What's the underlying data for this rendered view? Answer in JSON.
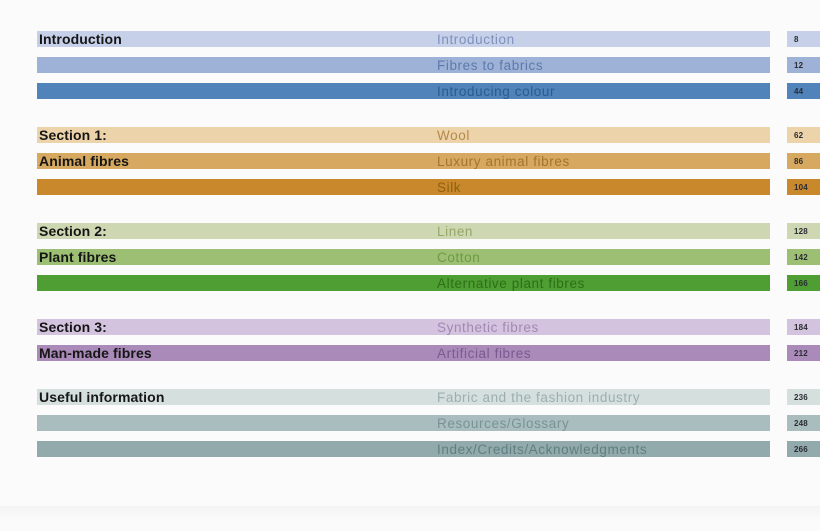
{
  "toc": {
    "groups": [
      {
        "rows": [
          {
            "section_label": "Introduction",
            "chapter": "Introduction",
            "page": "8",
            "bar_color": "#c6d0e8",
            "text_color": "#7e90bd"
          },
          {
            "section_label": "",
            "chapter": "Fibres to fabrics",
            "page": "12",
            "bar_color": "#9db2d6",
            "text_color": "#5d7aac"
          },
          {
            "section_label": "",
            "chapter": "Introducing colour",
            "page": "44",
            "bar_color": "#4f83b9",
            "text_color": "#2a5c8d"
          }
        ]
      },
      {
        "rows": [
          {
            "section_label": "Section 1:",
            "chapter": "Wool",
            "page": "62",
            "bar_color": "#ecd3aa",
            "text_color": "#b5894a"
          },
          {
            "section_label": "Animal fibres",
            "chapter": "Luxury animal fibres",
            "page": "86",
            "bar_color": "#d7a85f",
            "text_color": "#a1752e"
          },
          {
            "section_label": "",
            "chapter": "Silk",
            "page": "104",
            "bar_color": "#c8882b",
            "text_color": "#8e6110"
          }
        ]
      },
      {
        "rows": [
          {
            "section_label": "Section 2:",
            "chapter": "Linen",
            "page": "128",
            "bar_color": "#cdd7b2",
            "text_color": "#95a768"
          },
          {
            "section_label": "Plant fibres",
            "chapter": "Cotton",
            "page": "142",
            "bar_color": "#9cbf74",
            "text_color": "#6e9a42"
          },
          {
            "section_label": "",
            "chapter": "Alternative plant fibres",
            "page": "166",
            "bar_color": "#4f9e33",
            "text_color": "#2c6f15"
          }
        ]
      },
      {
        "rows": [
          {
            "section_label": "Section 3:",
            "chapter": "Synthetic fibres",
            "page": "184",
            "bar_color": "#d4c3de",
            "text_color": "#a287b4"
          },
          {
            "section_label": "Man-made fibres",
            "chapter": "Artificial fibres",
            "page": "212",
            "bar_color": "#a98ab9",
            "text_color": "#7b5a90"
          }
        ]
      },
      {
        "rows": [
          {
            "section_label": "Useful information",
            "chapter": "Fabric and the fashion industry",
            "page": "236",
            "bar_color": "#d4dfde",
            "text_color": "#9bafae"
          },
          {
            "section_label": "",
            "chapter": "Resources/Glossary",
            "page": "248",
            "bar_color": "#a9bdbe",
            "text_color": "#789394"
          },
          {
            "section_label": "",
            "chapter": "Index/Credits/Acknowledgments",
            "page": "266",
            "bar_color": "#93aaac",
            "text_color": "#5e7e81"
          }
        ]
      }
    ]
  }
}
